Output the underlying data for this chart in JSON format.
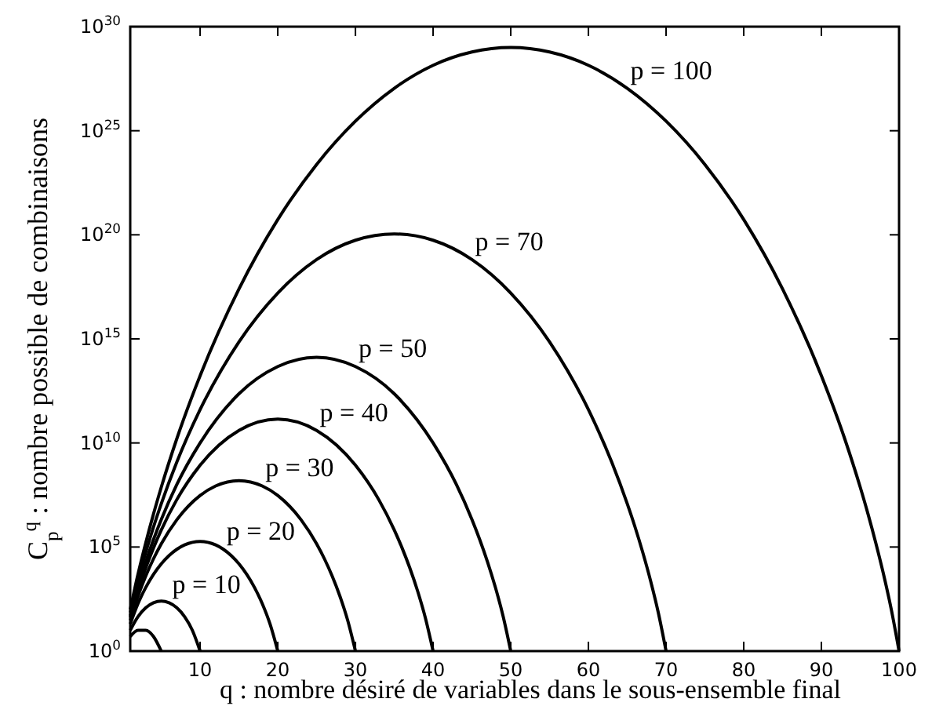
{
  "chart_data": {
    "type": "line",
    "xlabel": "q : nombre désiré de variables dans le sous-ensemble final",
    "ylabel": "C$_{p}$$^{q}$ : nombre possible de combinaisons",
    "log": "y",
    "xlim": [
      1,
      100
    ],
    "ylim": [
      1,
      1e+30
    ],
    "xticks": [
      10,
      20,
      30,
      40,
      50,
      60,
      70,
      80,
      90,
      100
    ],
    "yticks": [
      {
        "value": 1,
        "label": "10$^{0}$"
      },
      {
        "value": 100000.0,
        "label": "10$^{5}$"
      },
      {
        "value": 10000000000.0,
        "label": "10$^{10}$"
      },
      {
        "value": 1000000000000000.0,
        "label": "10$^{15}$"
      },
      {
        "value": 1e+20,
        "label": "10$^{20}$"
      },
      {
        "value": 1e+25,
        "label": "10$^{25}$"
      },
      {
        "value": 1e+30,
        "label": "10$^{30}$"
      }
    ],
    "grid": false,
    "line_style": "solid",
    "series": [
      {
        "color": "#000000",
        "x": [
          1,
          2,
          3,
          4,
          5
        ],
        "values": [
          5,
          10,
          10,
          5,
          1
        ]
      },
      {
        "name": "p = 10",
        "color": "#000000",
        "x": [
          1,
          2,
          3,
          4,
          5,
          6,
          7,
          8,
          9,
          10
        ],
        "values": [
          10,
          45,
          120,
          210,
          252,
          210,
          120,
          45,
          10,
          1
        ]
      },
      {
        "name": "p = 20",
        "color": "#000000",
        "x": [
          1,
          2,
          3,
          4,
          5,
          6,
          7,
          8,
          10,
          12,
          13,
          14,
          15,
          16,
          17,
          18,
          19,
          20
        ],
        "values": [
          20,
          190,
          1140,
          4845,
          15504,
          38760,
          77520,
          125970,
          184756,
          125970,
          77520,
          38760,
          15504,
          4845,
          1140,
          190,
          20,
          1
        ]
      },
      {
        "name": "p = 30",
        "color": "#000000",
        "x": [
          1,
          2,
          3,
          4,
          5,
          7,
          10,
          12,
          15,
          18,
          20,
          23,
          25,
          26,
          27,
          28,
          29,
          30
        ],
        "values": [
          30,
          435,
          4060,
          27405,
          142506,
          2035800,
          30000000.0,
          86000000.0,
          155000000.0,
          86000000.0,
          30000000.0,
          2035800,
          142506,
          27405,
          4060,
          435,
          30,
          1
        ]
      },
      {
        "name": "p = 40",
        "color": "#000000",
        "x": [
          1,
          2,
          3,
          4,
          5,
          7,
          10,
          15,
          20,
          25,
          30,
          33,
          35,
          36,
          37,
          38,
          39,
          40
        ],
        "values": [
          40,
          780,
          9880,
          91390,
          660000.0,
          19000000.0,
          850000000.0,
          40000000000.0,
          140000000000.0,
          40000000000.0,
          850000000.0,
          19000000.0,
          660000.0,
          91390,
          9880,
          780,
          40,
          1
        ]
      },
      {
        "name": "p = 50",
        "color": "#000000",
        "x": [
          1,
          2,
          3,
          4,
          5,
          7,
          10,
          15,
          20,
          25,
          30,
          35,
          40,
          43,
          45,
          46,
          47,
          48,
          49,
          50
        ],
        "values": [
          50,
          1225,
          19600,
          230000.0,
          2100000.0,
          100000000.0,
          10000000000.0,
          2300000000000.0,
          47000000000000.0,
          130000000000000.0,
          47000000000000.0,
          2300000000000.0,
          10000000000.0,
          100000000.0,
          2100000.0,
          230000.0,
          19600,
          1225,
          50,
          1
        ]
      },
      {
        "name": "p = 70",
        "color": "#000000",
        "x": [
          1,
          2,
          3,
          4,
          5,
          7,
          10,
          15,
          20,
          25,
          30,
          35,
          40,
          45,
          50,
          55,
          60,
          63,
          65,
          66,
          67,
          68,
          69,
          70
        ],
        "values": [
          70,
          2415,
          54740,
          920000.0,
          12000000.0,
          1200000000.0,
          400000000000.0,
          720000000000000.0,
          1.6e+17,
          6.5e+18,
          5.5e+19,
          1.1e+20,
          5.5e+19,
          6.5e+18,
          1.6e+17,
          720000000000000.0,
          400000000000.0,
          1200000000.0,
          12000000.0,
          920000.0,
          54740,
          2415,
          70,
          1
        ]
      },
      {
        "name": "p = 100",
        "color": "#000000",
        "x": [
          1,
          2,
          3,
          4,
          5,
          7,
          10,
          15,
          20,
          25,
          30,
          35,
          40,
          45,
          50,
          55,
          60,
          65,
          70,
          75,
          80,
          85,
          90,
          93,
          95,
          96,
          97,
          98,
          99,
          100
        ],
        "values": [
          100,
          4950,
          160000.0,
          3900000.0,
          75000000.0,
          16000000000.0,
          17000000000000.0,
          2.5e+17,
          5.4e+20,
          2.4e+23,
          2.9e+25,
          1.1e+27,
          1.4e+28,
          6.1e+28,
          1e+29,
          6.1e+28,
          1.4e+28,
          1.1e+27,
          2.9e+25,
          2.4e+23,
          5.4e+20,
          2.5e+17,
          17000000000000.0,
          16000000000.0,
          75000000.0,
          3900000.0,
          160000.0,
          4950,
          100,
          1
        ]
      }
    ]
  }
}
